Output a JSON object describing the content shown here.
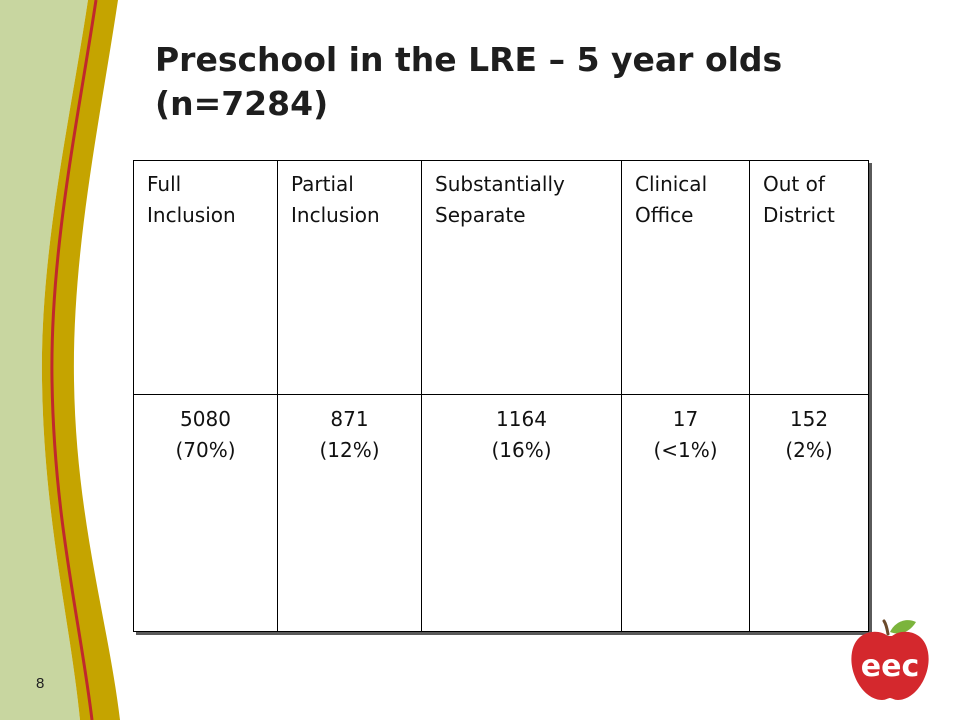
{
  "slide": {
    "title_line1": "Preschool in the LRE – 5 year olds",
    "title_line2": "(n=7284)",
    "page_number": "8",
    "logo_text": "eec"
  },
  "table": {
    "columns": [
      {
        "header_line1": "Full",
        "header_line2": "Inclusion",
        "count": "5080",
        "percent": "(70%)"
      },
      {
        "header_line1": "Partial",
        "header_line2": "Inclusion",
        "count": "871",
        "percent": "(12%)"
      },
      {
        "header_line1": "Substantially",
        "header_line2": "Separate",
        "count": "1164",
        "percent": "(16%)"
      },
      {
        "header_line1": "Clinical",
        "header_line2": "Office",
        "count": "17",
        "percent": "(<1%)"
      },
      {
        "header_line1": "Out of",
        "header_line2": "District",
        "count": "152",
        "percent": "(2%)"
      }
    ]
  },
  "colors": {
    "sidebar_green": "#c8d6a0",
    "gold_band": "#c5a400",
    "red_line": "#c0282c",
    "logo_red": "#d4282d",
    "leaf_green": "#7bb43c"
  }
}
